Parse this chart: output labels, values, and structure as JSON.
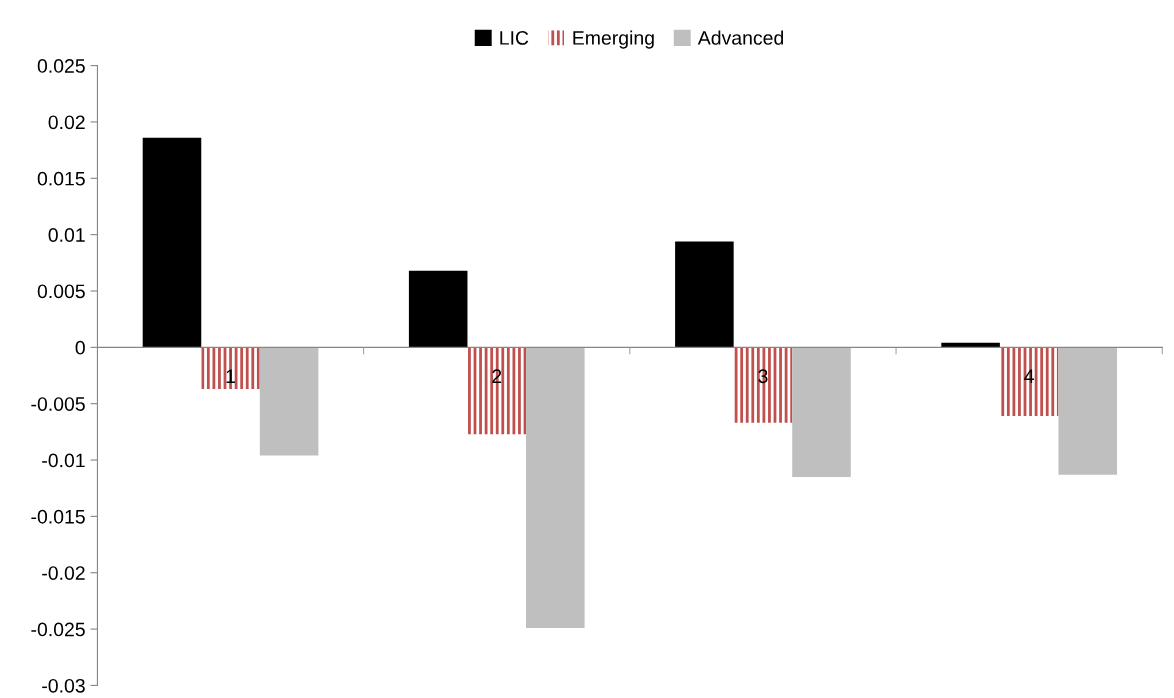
{
  "chart_data": {
    "type": "bar",
    "categories": [
      "1",
      "2",
      "3",
      "4"
    ],
    "series": [
      {
        "name": "LIC",
        "color": "#000000",
        "values": [
          0.0186,
          0.0068,
          0.0094,
          0.0004
        ]
      },
      {
        "name": "Emerging",
        "color": "#c0504d",
        "values": [
          -0.0037,
          -0.0077,
          -0.0067,
          -0.0061
        ]
      },
      {
        "name": "Advanced",
        "color": "#bfbfbf",
        "values": [
          -0.0096,
          -0.0249,
          -0.0115,
          -0.0113
        ]
      }
    ],
    "ylim": [
      -0.03,
      0.025
    ],
    "yticks": [
      -0.03,
      -0.025,
      -0.02,
      -0.015,
      -0.01,
      -0.005,
      0,
      0.005,
      0.01,
      0.015,
      0.02,
      0.025
    ],
    "grid": false,
    "legend": "top"
  }
}
